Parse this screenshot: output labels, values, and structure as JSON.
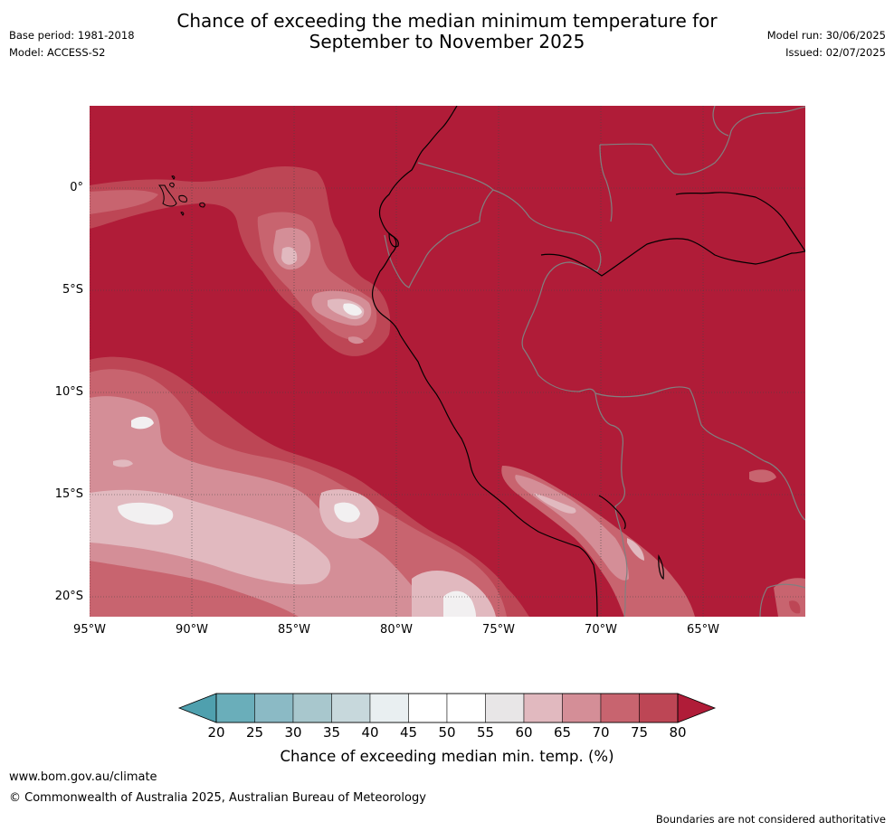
{
  "header": {
    "title_line1": "Chance of exceeding the median minimum temperature for",
    "title_line2": "September to November 2025",
    "base_period": "Base period: 1981-2018",
    "model": "Model: ACCESS-S2",
    "model_run": "Model run: 30/06/2025",
    "issued": "Issued: 02/07/2025"
  },
  "map": {
    "lat_labels": [
      "0°",
      "5°S",
      "10°S",
      "15°S",
      "20°S"
    ],
    "lon_labels": [
      "95°W",
      "90°W",
      "85°W",
      "80°W",
      "75°W",
      "70°W",
      "65°W"
    ],
    "lat_values": [
      0,
      -5,
      -10,
      -15,
      -20
    ],
    "lon_values": [
      -95,
      -90,
      -85,
      -80,
      -75,
      -70,
      -65
    ],
    "grid": true,
    "grid_style": "dotted"
  },
  "colorbar": {
    "ticks": [
      "20",
      "25",
      "30",
      "35",
      "40",
      "45",
      "50",
      "55",
      "60",
      "65",
      "70",
      "75",
      "80"
    ],
    "colors": [
      "#4fa0ae",
      "#6aaeba",
      "#8bbac5",
      "#a8c7cd",
      "#c7d8dc",
      "#e9eff1",
      "#ffffff",
      "#ffffff",
      "#e8e6e7",
      "#e1b9bf",
      "#d48e97",
      "#c8646f",
      "#bd4655",
      "#b01c38"
    ],
    "label": "Chance of exceeding median min. temp. (%)"
  },
  "footer": {
    "url": "www.bom.gov.au/climate",
    "copyright": "© Commonwealth of Australia 2025, Australian Bureau of Meteorology",
    "note": "Boundaries are not considered authoritative"
  }
}
